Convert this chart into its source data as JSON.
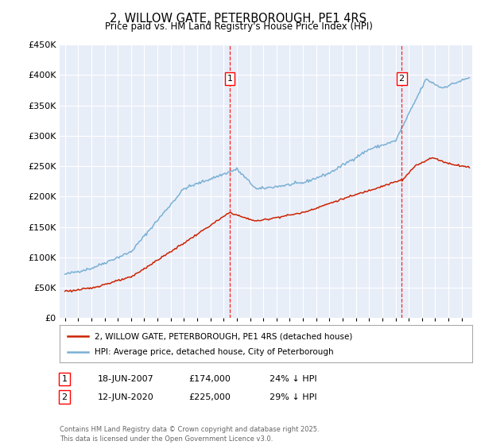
{
  "title": "2, WILLOW GATE, PETERBOROUGH, PE1 4RS",
  "subtitle": "Price paid vs. HM Land Registry's House Price Index (HPI)",
  "background_color": "#e8eef8",
  "plot_bg": "#e8eef8",
  "sale1_date": "18-JUN-2007",
  "sale1_price": 174000,
  "sale1_label": "1",
  "sale1_year": 2007.46,
  "sale2_date": "12-JUN-2020",
  "sale2_price": 225000,
  "sale2_label": "2",
  "sale2_year": 2020.46,
  "hpi_color": "#7ab0d4",
  "price_color": "#cc2200",
  "legend_label_price": "2, WILLOW GATE, PETERBOROUGH, PE1 4RS (detached house)",
  "legend_label_hpi": "HPI: Average price, detached house, City of Peterborough",
  "footer": "Contains HM Land Registry data © Crown copyright and database right 2025.\nThis data is licensed under the Open Government Licence v3.0.",
  "ylim_max": 450000,
  "yticks": [
    0,
    50000,
    100000,
    150000,
    200000,
    250000,
    300000,
    350000,
    400000,
    450000
  ],
  "xlim_min": 1994.6,
  "xlim_max": 2025.8
}
